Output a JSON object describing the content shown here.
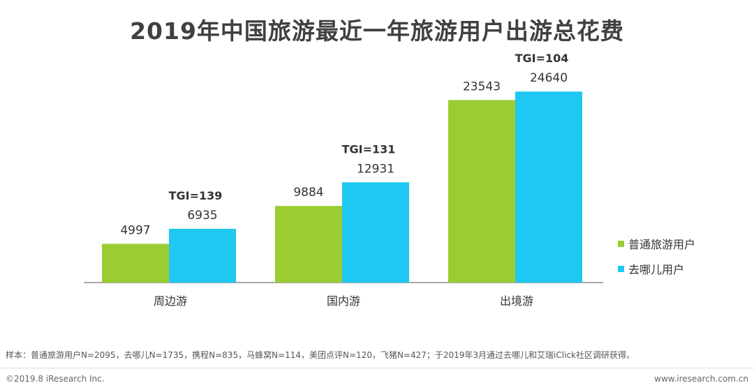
{
  "title": "2019年中国旅游最近一年旅游用户出游总花费",
  "colors": {
    "series1": "#9ACD32",
    "series2": "#1EC8F0",
    "axis": "#8c8c8c"
  },
  "chart_data": {
    "type": "bar",
    "title": "2019年中国旅游最近一年旅游用户出游总花费",
    "categories": [
      "周边游",
      "国内游",
      "出境游"
    ],
    "series": [
      {
        "name": "普通旅游用户",
        "values": [
          4997,
          9884,
          23543
        ]
      },
      {
        "name": "去哪儿用户",
        "values": [
          6935,
          12931,
          24640
        ]
      }
    ],
    "annotations": [
      "TGI=139",
      "TGI=131",
      "TGI=104"
    ],
    "ylim": [
      0,
      27000
    ],
    "grid": false,
    "legend": "right"
  },
  "note": "样本：普通旅游用户N=2095，去哪儿N=1735，携程N=835，马蜂窝N=114，美团点评N=120，飞猪N=427；于2019年3月通过去哪儿和艾瑞iClick社区调研获得。",
  "footer": {
    "left": "©2019.8 iResearch Inc.",
    "right": "www.iresearch.com.cn"
  }
}
